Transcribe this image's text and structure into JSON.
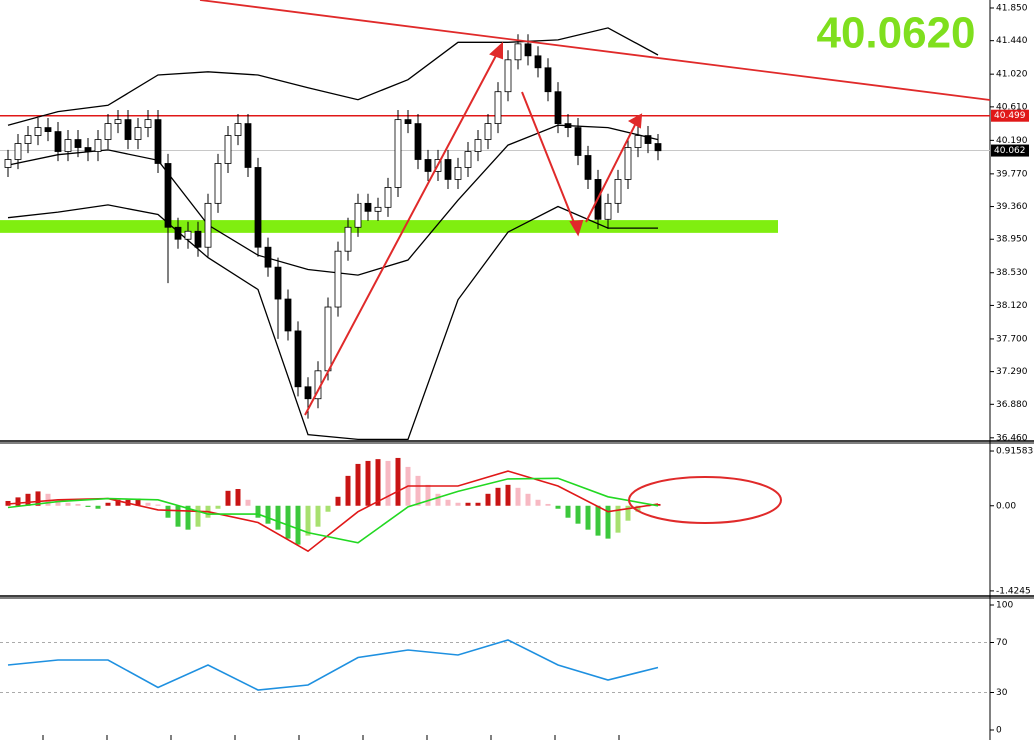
{
  "chart_data": [
    {
      "type": "candlestick",
      "open": [
        39.85,
        39.95,
        40.15,
        40.25,
        40.35,
        40.3,
        40.05,
        40.2,
        40.1,
        40.05,
        40.2,
        40.4,
        40.45,
        40.2,
        40.35,
        40.45,
        39.9,
        39.1,
        38.95,
        39.05,
        38.85,
        39.4,
        39.9,
        40.25,
        40.4,
        39.85,
        38.85,
        38.6,
        38.2,
        37.8,
        37.1,
        36.95,
        37.3,
        38.1,
        38.8,
        39.1,
        39.4,
        39.3,
        39.35,
        39.6,
        40.45,
        40.4,
        39.95,
        39.8,
        39.95,
        39.7,
        39.85,
        40.05,
        40.2,
        40.4,
        40.8,
        41.2,
        41.4,
        41.25,
        41.1,
        40.8,
        40.4,
        40.35,
        40.0,
        39.7,
        39.2,
        39.4,
        39.7,
        40.1,
        40.25,
        40.15
      ],
      "high": [
        40.07,
        40.27,
        40.37,
        40.47,
        40.47,
        40.42,
        40.32,
        40.32,
        40.22,
        40.32,
        40.52,
        40.57,
        40.57,
        40.47,
        40.57,
        40.57,
        40.02,
        39.22,
        39.17,
        39.17,
        39.52,
        40.02,
        40.37,
        40.52,
        40.52,
        39.97,
        38.97,
        38.72,
        38.32,
        37.92,
        37.22,
        37.42,
        38.22,
        38.92,
        39.22,
        39.52,
        39.52,
        39.47,
        39.72,
        40.57,
        40.57,
        40.52,
        40.07,
        40.07,
        40.07,
        39.97,
        40.17,
        40.32,
        40.52,
        40.92,
        41.32,
        41.52,
        41.52,
        41.37,
        41.22,
        40.92,
        40.52,
        40.47,
        40.12,
        39.82,
        39.52,
        39.82,
        40.22,
        40.37,
        40.37,
        40.27
      ],
      "low": [
        39.73,
        39.83,
        40.03,
        40.13,
        40.18,
        39.93,
        39.93,
        39.98,
        39.93,
        39.93,
        40.08,
        40.28,
        40.08,
        40.08,
        40.23,
        39.78,
        38.4,
        38.83,
        38.83,
        38.73,
        38.73,
        39.28,
        39.78,
        40.13,
        39.73,
        38.73,
        38.48,
        37.7,
        37.68,
        36.98,
        36.7,
        36.83,
        37.18,
        37.98,
        38.68,
        38.98,
        39.18,
        39.18,
        39.23,
        39.48,
        40.28,
        39.83,
        39.68,
        39.68,
        39.58,
        39.58,
        39.73,
        39.93,
        40.08,
        40.28,
        40.68,
        41.08,
        41.13,
        40.98,
        40.68,
        40.28,
        40.23,
        39.88,
        39.58,
        39.08,
        39.08,
        39.28,
        39.58,
        39.98,
        40.03,
        39.94
      ],
      "close": [
        39.95,
        40.15,
        40.25,
        40.35,
        40.3,
        40.05,
        40.2,
        40.1,
        40.05,
        40.2,
        40.4,
        40.45,
        40.2,
        40.35,
        40.45,
        39.9,
        39.1,
        38.95,
        39.05,
        38.85,
        39.4,
        39.9,
        40.25,
        40.4,
        39.85,
        38.85,
        38.6,
        38.2,
        37.8,
        37.1,
        36.95,
        37.3,
        38.1,
        38.8,
        39.1,
        39.4,
        39.3,
        39.35,
        39.6,
        40.45,
        40.4,
        39.95,
        39.8,
        39.95,
        39.7,
        39.85,
        40.05,
        40.2,
        40.4,
        40.8,
        41.2,
        41.4,
        41.25,
        41.1,
        40.8,
        40.4,
        40.35,
        40.0,
        39.7,
        39.2,
        39.4,
        39.7,
        40.1,
        40.25,
        40.15,
        40.06
      ],
      "up_color": "#ffffff",
      "down_color": "#000000",
      "bands": [
        {
          "color": "#000000",
          "x": [
            0,
            5,
            10,
            15,
            20,
            25,
            30,
            35,
            40,
            45,
            50,
            55,
            60,
            65
          ],
          "values": [
            40.38,
            40.55,
            40.63,
            41.01,
            41.05,
            41.01,
            40.85,
            40.7,
            40.95,
            41.42,
            41.42,
            41.45,
            41.6,
            41.26
          ]
        },
        {
          "color": "#000000",
          "x": [
            0,
            5,
            10,
            15,
            20,
            25,
            30,
            35,
            40,
            45,
            50,
            55,
            60,
            65
          ],
          "values": [
            39.88,
            40.01,
            40.07,
            39.94,
            39.13,
            38.75,
            38.57,
            38.5,
            38.69,
            39.44,
            40.13,
            40.38,
            40.35,
            40.2
          ]
        },
        {
          "color": "#000000",
          "x": [
            0,
            5,
            10,
            15,
            20,
            25,
            30,
            35,
            40,
            45,
            50,
            55,
            60,
            65
          ],
          "values": [
            39.22,
            39.29,
            39.38,
            39.26,
            38.72,
            38.32,
            36.5,
            36.44,
            36.44,
            38.19,
            39.04,
            39.36,
            39.09,
            39.09
          ]
        }
      ],
      "xlim": [
        -0.8,
        98.2
      ],
      "ylim": [
        36.42,
        41.95
      ],
      "yticks": [
        {
          "value": 41.85,
          "label": "41.850"
        },
        {
          "value": 41.44,
          "label": "41.440"
        },
        {
          "value": 41.02,
          "label": "41.020"
        },
        {
          "value": 40.61,
          "label": "40.610"
        },
        {
          "value": 40.19,
          "label": "40.190"
        },
        {
          "value": 39.77,
          "label": "39.770"
        },
        {
          "value": 39.36,
          "label": "39.360"
        },
        {
          "value": 38.95,
          "label": "38.950"
        },
        {
          "value": 38.53,
          "label": "38.530"
        },
        {
          "value": 38.12,
          "label": "38.120"
        },
        {
          "value": 37.7,
          "label": "37.700"
        },
        {
          "value": 37.29,
          "label": "37.290"
        },
        {
          "value": 36.88,
          "label": "36.880"
        },
        {
          "value": 36.46,
          "label": "36.460"
        }
      ],
      "level": {
        "value": 40.499,
        "label": "40.499",
        "color": "#e01818"
      },
      "last": {
        "value": 40.062,
        "label": "40.062"
      },
      "last_display": "40.0620",
      "zone": {
        "from": 39.03,
        "to": 39.19,
        "color": "#80ee10"
      }
    },
    {
      "type": "macd",
      "values": [
        0.08,
        0.14,
        0.2,
        0.24,
        0.2,
        0.1,
        0.05,
        0.03,
        -0.02,
        -0.05,
        0.05,
        0.1,
        0.1,
        0.12,
        0.05,
        0.02,
        -0.2,
        -0.35,
        -0.4,
        -0.35,
        -0.2,
        -0.05,
        0.25,
        0.28,
        0.1,
        -0.2,
        -0.3,
        -0.4,
        -0.55,
        -0.65,
        -0.5,
        -0.35,
        -0.1,
        0.15,
        0.5,
        0.7,
        0.75,
        0.78,
        0.75,
        0.8,
        0.65,
        0.5,
        0.35,
        0.2,
        0.1,
        0.05,
        0.05,
        0.05,
        0.2,
        0.3,
        0.35,
        0.3,
        0.2,
        0.1,
        0.03,
        -0.05,
        -0.2,
        -0.3,
        -0.4,
        -0.5,
        -0.55,
        -0.45,
        -0.25,
        -0.1,
        0.0,
        0.03
      ],
      "hist_colors": {
        "pos_up": "#c81414",
        "pos_down": "#f7b9c3",
        "neg_down": "#3cc83c",
        "neg_up": "#a8e070"
      },
      "lines": [
        {
          "color": "#e01818",
          "x": [
            0,
            5,
            10,
            15,
            20,
            25,
            30,
            35,
            40,
            45,
            50,
            55,
            60,
            65
          ],
          "values": [
            0.03,
            0.1,
            0.12,
            -0.07,
            -0.1,
            -0.28,
            -0.76,
            -0.1,
            0.33,
            0.33,
            0.58,
            0.33,
            -0.1,
            0.03
          ]
        },
        {
          "color": "#22d822",
          "x": [
            0,
            5,
            10,
            15,
            20,
            25,
            30,
            35,
            40,
            45,
            50,
            55,
            60,
            65
          ],
          "values": [
            -0.03,
            0.07,
            0.12,
            0.1,
            -0.14,
            -0.14,
            -0.45,
            -0.62,
            -0.02,
            0.24,
            0.45,
            0.46,
            0.15,
            0
          ]
        }
      ],
      "xlim": [
        -0.8,
        98.2
      ],
      "ylim": [
        -1.51,
        1.05
      ],
      "yticks": [
        0.91583,
        {
          "value": 0,
          "label": "0.00"
        },
        -1.4245
      ]
    },
    {
      "type": "line",
      "lines": [
        {
          "color": "#1e90e0",
          "x": [
            0,
            5,
            10,
            15,
            20,
            25,
            30,
            35,
            40,
            45,
            50,
            55,
            60,
            65
          ],
          "values": [
            52,
            56,
            56,
            34,
            52,
            32,
            36,
            58,
            64,
            60,
            72,
            52,
            40,
            50
          ]
        }
      ],
      "xlim": [
        -0.8,
        98.2
      ],
      "ylim": [
        -8,
        105.6
      ],
      "yticks": [
        100,
        70,
        30,
        0
      ],
      "levels": [
        70,
        30
      ]
    }
  ]
}
